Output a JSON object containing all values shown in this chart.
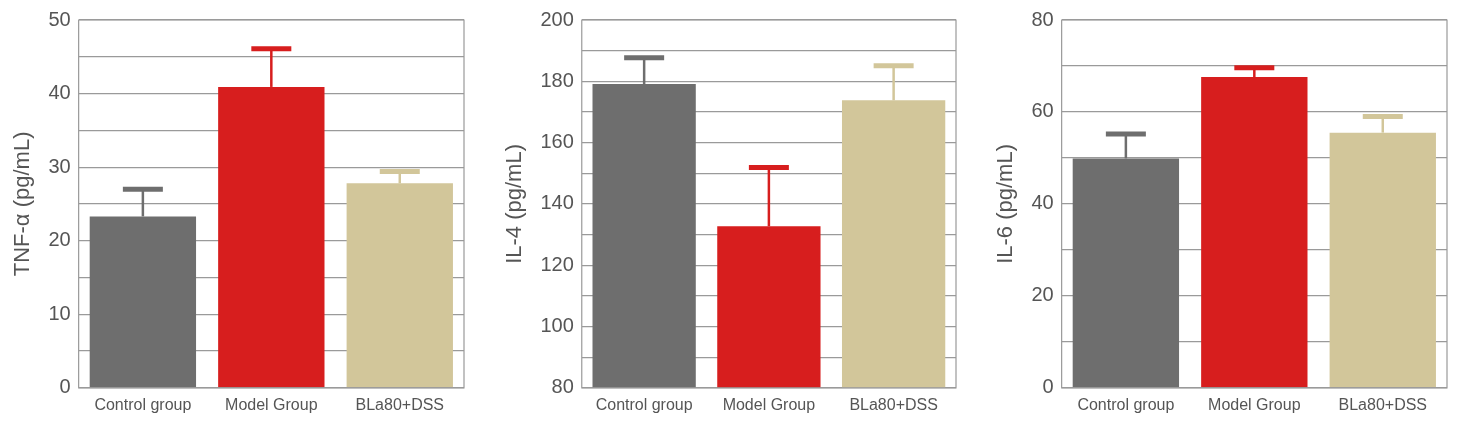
{
  "chart_data": [
    {
      "type": "bar",
      "ylabel": "TNF-α (pg/mL)",
      "categories": [
        "Control group",
        "Model Group",
        "BLa80+DSS"
      ],
      "values": [
        23.3,
        40.9,
        27.8
      ],
      "colors": [
        "#6e6e6e",
        "#d71e1e",
        "#d2c69a"
      ],
      "errors": [
        [
          23.3,
          27.0
        ],
        [
          40.9,
          46.1
        ],
        [
          27.8,
          29.4
        ]
      ],
      "ylim": [
        0,
        50
      ],
      "yticks": [
        0,
        {
          "value": 5,
          "label": null
        },
        10,
        {
          "value": 15,
          "label": null
        },
        20,
        {
          "value": 25,
          "label": null
        },
        30,
        {
          "value": 35,
          "label": null
        },
        40,
        {
          "value": 45,
          "label": null
        },
        50
      ],
      "grid": "y"
    },
    {
      "type": "bar",
      "ylabel": "IL-4 (pg/mL)",
      "categories": [
        "Control group",
        "Model Group",
        "BLa80+DSS"
      ],
      "values": [
        179.1,
        132.7,
        173.8
      ],
      "colors": [
        "#6e6e6e",
        "#d71e1e",
        "#d2c69a"
      ],
      "errors": [
        [
          179.1,
          187.7
        ],
        [
          132.7,
          151.9
        ],
        [
          173.8,
          185.1
        ]
      ],
      "ylim": [
        80,
        200
      ],
      "yticks": [
        80,
        {
          "value": 90,
          "label": null
        },
        100,
        {
          "value": 110,
          "label": null
        },
        120,
        {
          "value": 130,
          "label": null
        },
        140,
        {
          "value": 150,
          "label": null
        },
        160,
        {
          "value": 170,
          "label": null
        },
        180,
        {
          "value": 190,
          "label": null
        },
        200
      ],
      "grid": "y"
    },
    {
      "type": "bar",
      "ylabel": "IL-6 (pg/mL)",
      "categories": [
        "Control group",
        "Model Group",
        "BLa80+DSS"
      ],
      "values": [
        49.9,
        67.6,
        55.5
      ],
      "colors": [
        "#6e6e6e",
        "#d71e1e",
        "#d2c69a"
      ],
      "errors": [
        [
          49.9,
          55.2
        ],
        [
          67.6,
          69.6
        ],
        [
          55.5,
          59.0
        ]
      ],
      "ylim": [
        0,
        80
      ],
      "yticks": [
        0,
        {
          "value": 10,
          "label": null
        },
        20,
        {
          "value": 30,
          "label": null
        },
        40,
        {
          "value": 50,
          "label": null
        },
        60,
        {
          "value": 70,
          "label": null
        },
        80
      ],
      "grid": "y"
    }
  ]
}
